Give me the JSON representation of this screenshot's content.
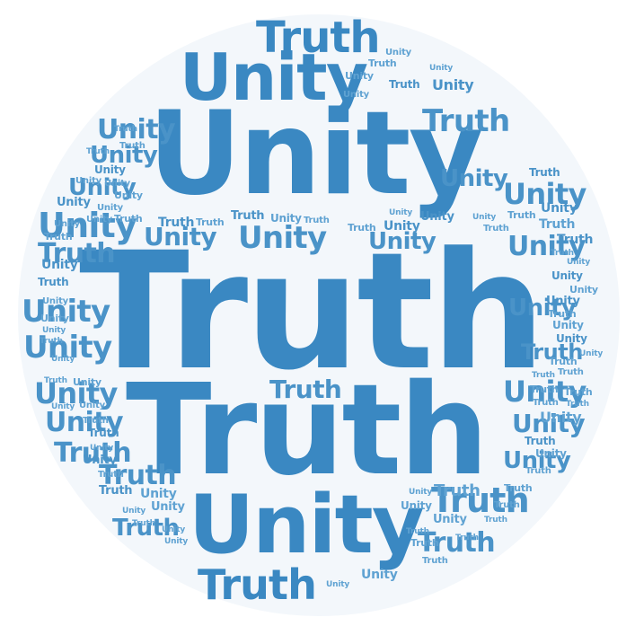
{
  "words": [
    "Truth",
    "Unity"
  ],
  "colors": {
    "background": "#ffffff",
    "disc": "#f3f7fb",
    "dark": "#3a88c2",
    "mid": "#4a93c8",
    "light": "#5fa2d2"
  }
}
